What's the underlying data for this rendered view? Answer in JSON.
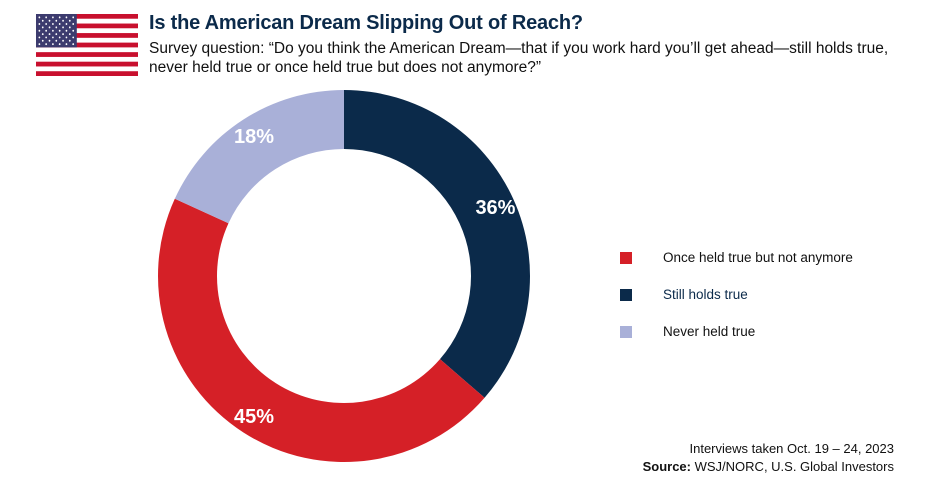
{
  "header": {
    "title": "Is the American Dream Slipping Out of Reach?",
    "subtitle": "Survey question: “Do you think the American Dream—that if you work hard you’ll get ahead—still holds true, never held true or once held true but does not anymore?”"
  },
  "flag_icon": "us-flag-icon",
  "chart_data": {
    "type": "pie",
    "variant": "donut",
    "slices": [
      {
        "label": "Still holds true",
        "value": 36,
        "display": "36%",
        "color": "#0b2a4a"
      },
      {
        "label": "Once held true but not anymore",
        "value": 45,
        "display": "45%",
        "color": "#d52027"
      },
      {
        "label": "Never held true",
        "value": 18,
        "display": "18%",
        "color": "#a9b0d8"
      }
    ],
    "legend_order": [
      1,
      0,
      2
    ],
    "legend_position": "right"
  },
  "footer": {
    "note": "Interviews taken Oct. 19 – 24, 2023",
    "source_label": "Source:",
    "source_text": " WSJ/NORC, U.S. Global Investors"
  }
}
